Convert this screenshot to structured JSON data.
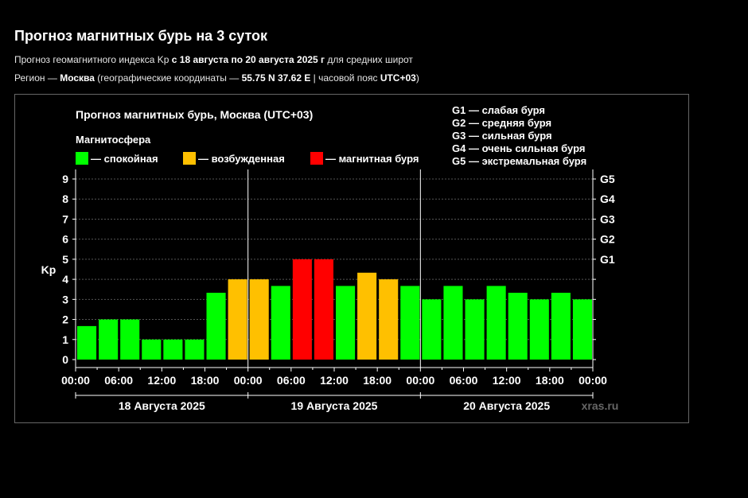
{
  "page": {
    "title": "Прогноз магнитных бурь на 3 суток",
    "line1": {
      "pre": "Прогноз геомагнитного индекса Kp ",
      "bold": "с 18 августа по 20 августа 2025 г",
      "post": " для средних широт"
    },
    "line2": {
      "pre": "Регион — ",
      "region": "Москва",
      "mid": " (географические координаты — ",
      "coords": "55.75 N 37.62 E",
      "sep": " | часовой пояс ",
      "tz": "UTC+03",
      "end": ")"
    }
  },
  "colors": {
    "calm": "#00ff00",
    "excited": "#ffc000",
    "storm": "#ff0000"
  },
  "chart_data": {
    "type": "bar",
    "title": "Прогноз магнитных бурь, Москва (UTC+03)",
    "ylabel": "Kp",
    "ylim": [
      0,
      9
    ],
    "yticks": [
      "0",
      "1",
      "2",
      "3",
      "4",
      "5",
      "6",
      "7",
      "8",
      "9"
    ],
    "g_scale": [
      {
        "kp": 5,
        "label": "G1"
      },
      {
        "kp": 6,
        "label": "G2"
      },
      {
        "kp": 7,
        "label": "G3"
      },
      {
        "kp": 8,
        "label": "G4"
      },
      {
        "kp": 9,
        "label": "G5"
      }
    ],
    "g_legend": [
      "G1 — слабая буря",
      "G2 — средняя буря",
      "G3 — сильная буря",
      "G4 — очень сильная буря",
      "G5 — экстремальная буря"
    ],
    "legend_title": "Магнитосфера",
    "legend": [
      {
        "label": " — спокойная",
        "status": "calm"
      },
      {
        "label": " — возбужденная",
        "status": "excited"
      },
      {
        "label": " — магнитная буря",
        "status": "storm"
      }
    ],
    "xticks": [
      "00:00",
      "06:00",
      "12:00",
      "18:00",
      "00:00",
      "06:00",
      "12:00",
      "18:00",
      "00:00",
      "06:00",
      "12:00",
      "18:00",
      "00:00"
    ],
    "days": [
      "18 Августа 2025",
      "19 Августа 2025",
      "20 Августа 2025"
    ],
    "watermark": "xras.ru",
    "values": [
      1.67,
      2.0,
      2.0,
      1.0,
      1.0,
      1.0,
      3.33,
      4.0,
      4.0,
      3.67,
      5.0,
      5.0,
      3.67,
      4.33,
      4.0,
      3.67,
      3.0,
      3.67,
      3.0,
      3.67,
      3.33,
      3.0,
      3.33,
      3.0
    ],
    "status": [
      "calm",
      "calm",
      "calm",
      "calm",
      "calm",
      "calm",
      "calm",
      "excited",
      "excited",
      "calm",
      "storm",
      "storm",
      "calm",
      "excited",
      "excited",
      "calm",
      "calm",
      "calm",
      "calm",
      "calm",
      "calm",
      "calm",
      "calm",
      "calm"
    ]
  }
}
